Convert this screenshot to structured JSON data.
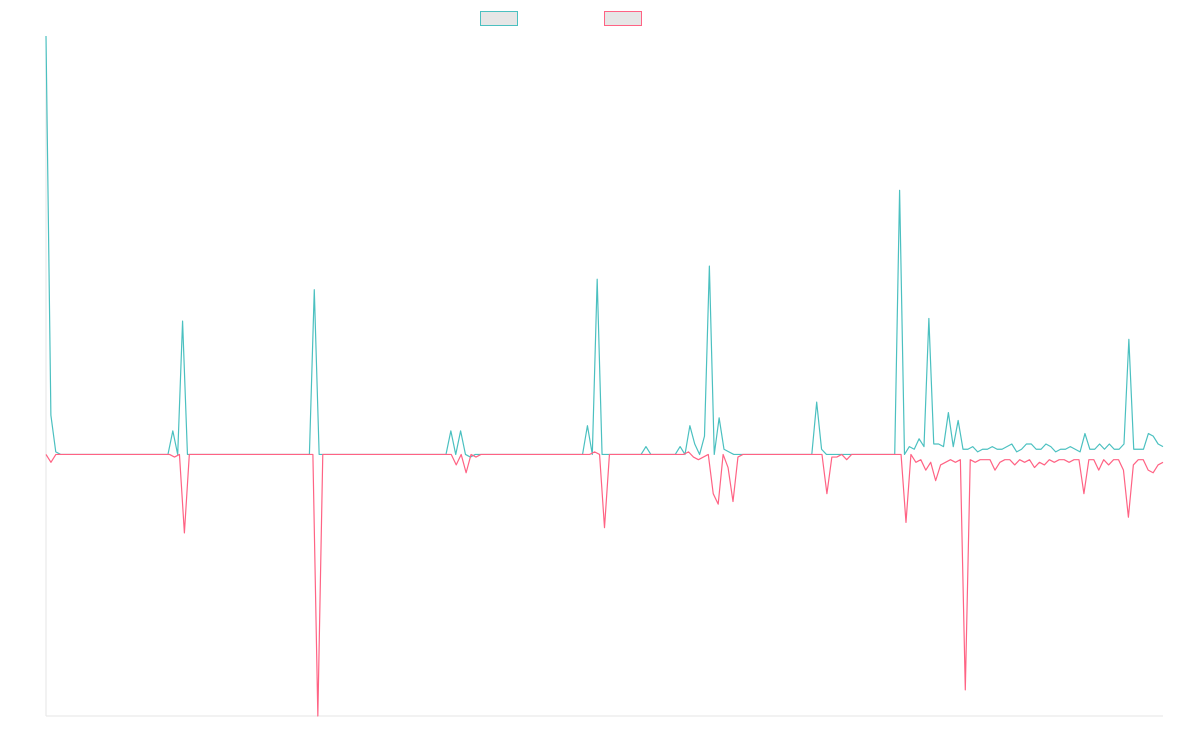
{
  "chart_data": {
    "type": "line",
    "title": "",
    "xlabel": "",
    "ylabel": "",
    "grid": false,
    "legend_position": "top-center",
    "ylim": [
      -1.0,
      1.6
    ],
    "series": [
      {
        "label": "",
        "color": "#4bc0c0",
        "values": [
          1.6,
          0.15,
          0.01,
          0,
          0,
          0,
          0,
          0,
          0,
          0,
          0,
          0,
          0,
          0,
          0,
          0,
          0,
          0,
          0,
          0,
          0,
          0,
          0,
          0,
          0,
          0,
          0.09,
          0,
          0.51,
          0,
          0,
          0,
          0,
          0,
          0,
          0,
          0,
          0,
          0,
          0,
          0,
          0,
          0,
          0,
          0,
          0,
          0,
          0,
          0,
          0,
          0,
          0,
          0,
          0,
          0,
          0.63,
          0,
          0,
          0,
          0,
          0,
          0,
          0,
          0,
          0,
          0,
          0,
          0,
          0,
          0,
          0,
          0,
          0,
          0,
          0,
          0,
          0,
          0,
          0,
          0,
          0,
          0,
          0,
          0.09,
          0,
          0.09,
          0,
          -0.01,
          0,
          0,
          0,
          0,
          0,
          0,
          0,
          0,
          0,
          0,
          0,
          0,
          0,
          0,
          0,
          0,
          0,
          0,
          0,
          0,
          0,
          0,
          0,
          0.11,
          0,
          0.67,
          0,
          0,
          0,
          0,
          0,
          0,
          0,
          0,
          0,
          0.03,
          0,
          0,
          0,
          0,
          0,
          0,
          0.03,
          0,
          0.11,
          0.04,
          0,
          0.07,
          0.72,
          0,
          0.14,
          0.02,
          0.01,
          0,
          0,
          0,
          0,
          0,
          0,
          0,
          0,
          0,
          0,
          0,
          0,
          0,
          0,
          0,
          0,
          0,
          0.2,
          0.02,
          0,
          0,
          0,
          0,
          0,
          0,
          0,
          0,
          0,
          0,
          0,
          0,
          0,
          0,
          0,
          1.01,
          0,
          0.03,
          0.02,
          0.06,
          0.03,
          0.52,
          0.04,
          0.04,
          0.03,
          0.16,
          0.03,
          0.13,
          0.02,
          0.02,
          0.03,
          0.01,
          0.02,
          0.02,
          0.03,
          0.02,
          0.02,
          0.03,
          0.04,
          0.01,
          0.02,
          0.04,
          0.04,
          0.02,
          0.02,
          0.04,
          0.03,
          0.01,
          0.02,
          0.02,
          0.03,
          0.02,
          0.01,
          0.08,
          0.02,
          0.02,
          0.04,
          0.02,
          0.04,
          0.02,
          0.02,
          0.04,
          0.44,
          0.02,
          0.02,
          0.02,
          0.08,
          0.07,
          0.04,
          0.03
        ]
      },
      {
        "label": "",
        "color": "#ff6384",
        "values": [
          0,
          -0.03,
          0,
          0,
          0,
          0,
          0,
          0,
          0,
          0,
          0,
          0,
          0,
          0,
          0,
          0,
          0,
          0,
          0,
          0,
          0,
          0,
          0,
          0,
          0,
          0,
          -0.01,
          0,
          -0.3,
          0,
          0,
          0,
          0,
          0,
          0,
          0,
          0,
          0,
          0,
          0,
          0,
          0,
          0,
          0,
          0,
          0,
          0,
          0,
          0,
          0,
          0,
          0,
          0,
          0,
          0,
          -1.0,
          0,
          0,
          0,
          0,
          0,
          0,
          0,
          0,
          0,
          0,
          0,
          0,
          0,
          0,
          0,
          0,
          0,
          0,
          0,
          0,
          0,
          0,
          0,
          0,
          0,
          0,
          0,
          -0.04,
          0,
          -0.07,
          0,
          -0.01,
          0,
          0,
          0,
          0,
          0,
          0,
          0,
          0,
          0,
          0,
          0,
          0,
          0,
          0,
          0,
          0,
          0,
          0,
          0,
          0,
          0,
          0,
          0,
          0.01,
          0,
          -0.28,
          0,
          0,
          0,
          0,
          0,
          0,
          0,
          0,
          0,
          0,
          0,
          0,
          0,
          0,
          0,
          0,
          0.01,
          -0.01,
          -0.02,
          -0.01,
          0,
          -0.15,
          -0.19,
          0,
          -0.05,
          -0.18,
          -0.01,
          0,
          0,
          0,
          0,
          0,
          0,
          0,
          0,
          0,
          0,
          0,
          0,
          0,
          0,
          0,
          0,
          0,
          -0.15,
          -0.01,
          -0.01,
          0,
          -0.02,
          0,
          0,
          0,
          0,
          0,
          0,
          0,
          0,
          0,
          0,
          0,
          -0.26,
          0,
          -0.03,
          -0.02,
          -0.06,
          -0.03,
          -0.1,
          -0.04,
          -0.03,
          -0.02,
          -0.03,
          -0.02,
          -0.9,
          -0.02,
          -0.03,
          -0.02,
          -0.02,
          -0.02,
          -0.06,
          -0.03,
          -0.02,
          -0.02,
          -0.04,
          -0.02,
          -0.03,
          -0.02,
          -0.05,
          -0.03,
          -0.04,
          -0.02,
          -0.03,
          -0.02,
          -0.02,
          -0.03,
          -0.02,
          -0.02,
          -0.15,
          -0.02,
          -0.02,
          -0.06,
          -0.02,
          -0.04,
          -0.02,
          -0.02,
          -0.06,
          -0.24,
          -0.04,
          -0.02,
          -0.02,
          -0.06,
          -0.07,
          -0.04,
          -0.03
        ]
      }
    ]
  }
}
